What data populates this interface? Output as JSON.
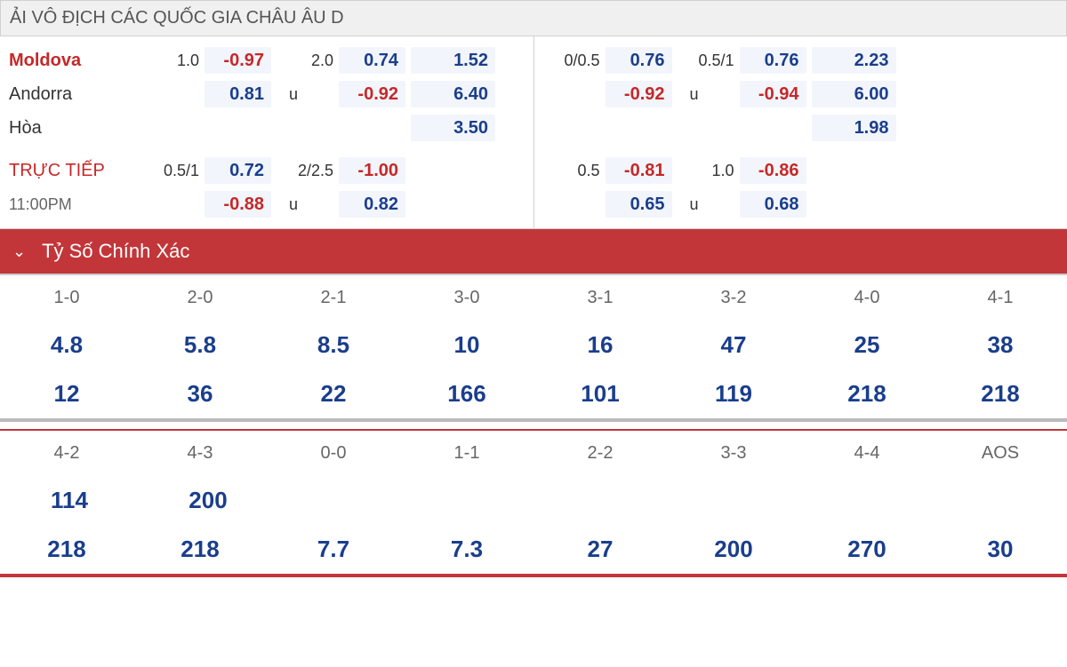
{
  "league_title": "ẢI VÔ ĐỊCH CÁC QUỐC GIA CHÂU ÂU D",
  "rows": {
    "team1": "Moldova",
    "team2": "Andorra",
    "draw": "Hòa",
    "live_label": "TRỰC TIẾP",
    "live_time": "11:00PM"
  },
  "left": {
    "r1": {
      "h1": "1.0",
      "v1": "-0.97",
      "h2": "2.0",
      "v2": "0.74",
      "v3": "1.52"
    },
    "r2": {
      "v1": "0.81",
      "h2": "u",
      "v2": "-0.92",
      "v3": "6.40"
    },
    "r3": {
      "v3": "3.50"
    },
    "r4": {
      "h1": "0.5/1",
      "v1": "0.72",
      "h2": "2/2.5",
      "v2": "-1.00"
    },
    "r5": {
      "v1": "-0.88",
      "h2": "u",
      "v2": "0.82"
    }
  },
  "right": {
    "r1": {
      "h1": "0/0.5",
      "v1": "0.76",
      "h2": "0.5/1",
      "v2": "0.76",
      "v3": "2.23"
    },
    "r2": {
      "v1": "-0.92",
      "h2": "u",
      "v2": "-0.94",
      "v3": "6.00"
    },
    "r3": {
      "v3": "1.98"
    },
    "r4": {
      "h1": "0.5",
      "v1": "-0.81",
      "h2": "1.0",
      "v2": "-0.86"
    },
    "r5": {
      "v1": "0.65",
      "h2": "u",
      "v2": "0.68"
    }
  },
  "section_title": "Tỷ Số Chính Xác",
  "scores1": {
    "headers": [
      "1-0",
      "2-0",
      "2-1",
      "3-0",
      "3-1",
      "3-2",
      "4-0",
      "4-1"
    ],
    "row1": [
      "4.8",
      "5.8",
      "8.5",
      "10",
      "16",
      "47",
      "25",
      "38"
    ],
    "row2": [
      "12",
      "36",
      "22",
      "166",
      "101",
      "119",
      "218",
      "218"
    ]
  },
  "scores2": {
    "headers": [
      "4-2",
      "4-3",
      "0-0",
      "1-1",
      "2-2",
      "3-3",
      "4-4",
      "AOS"
    ],
    "row1": [
      "114",
      "200",
      "",
      "",
      "",
      "",
      "",
      ""
    ],
    "row2": [
      "218",
      "218",
      "7.7",
      "7.3",
      "27",
      "200",
      "270",
      "30"
    ]
  }
}
